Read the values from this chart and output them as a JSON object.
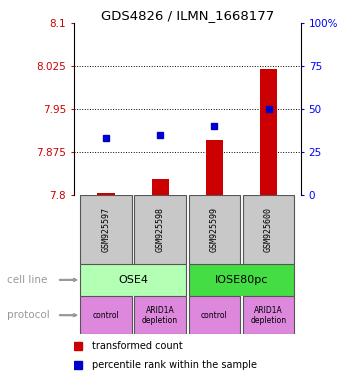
{
  "title": "GDS4826 / ILMN_1668177",
  "samples": [
    "GSM925597",
    "GSM925598",
    "GSM925599",
    "GSM925600"
  ],
  "transformed_counts": [
    7.803,
    7.827,
    7.895,
    8.02
  ],
  "percentile_ranks": [
    33,
    35,
    40,
    50
  ],
  "ymin": 7.8,
  "ymax": 8.1,
  "yticks": [
    7.8,
    7.875,
    7.95,
    8.025,
    8.1
  ],
  "ytick_labels": [
    "7.8",
    "7.875",
    "7.95",
    "8.025",
    "8.1"
  ],
  "right_yticks": [
    0,
    25,
    50,
    75,
    100
  ],
  "right_ytick_labels": [
    "0",
    "25",
    "50",
    "75",
    "100%"
  ],
  "bar_color": "#cc0000",
  "dot_color": "#0000cc",
  "cell_line_colors": [
    "#b3ffb3",
    "#44dd44"
  ],
  "cell_lines": [
    "OSE4",
    "IOSE80pc"
  ],
  "cell_line_spans": [
    [
      0,
      2
    ],
    [
      2,
      4
    ]
  ],
  "protocol_color": "#dd88dd",
  "protocols": [
    "control",
    "ARID1A\ndepletion",
    "control",
    "ARID1A\ndepletion"
  ],
  "sample_bg_color": "#c8c8c8",
  "legend_bar_label": "transformed count",
  "legend_dot_label": "percentile rank within the sample",
  "cell_line_label": "cell line",
  "protocol_label": "protocol",
  "arrow_color": "#999999"
}
